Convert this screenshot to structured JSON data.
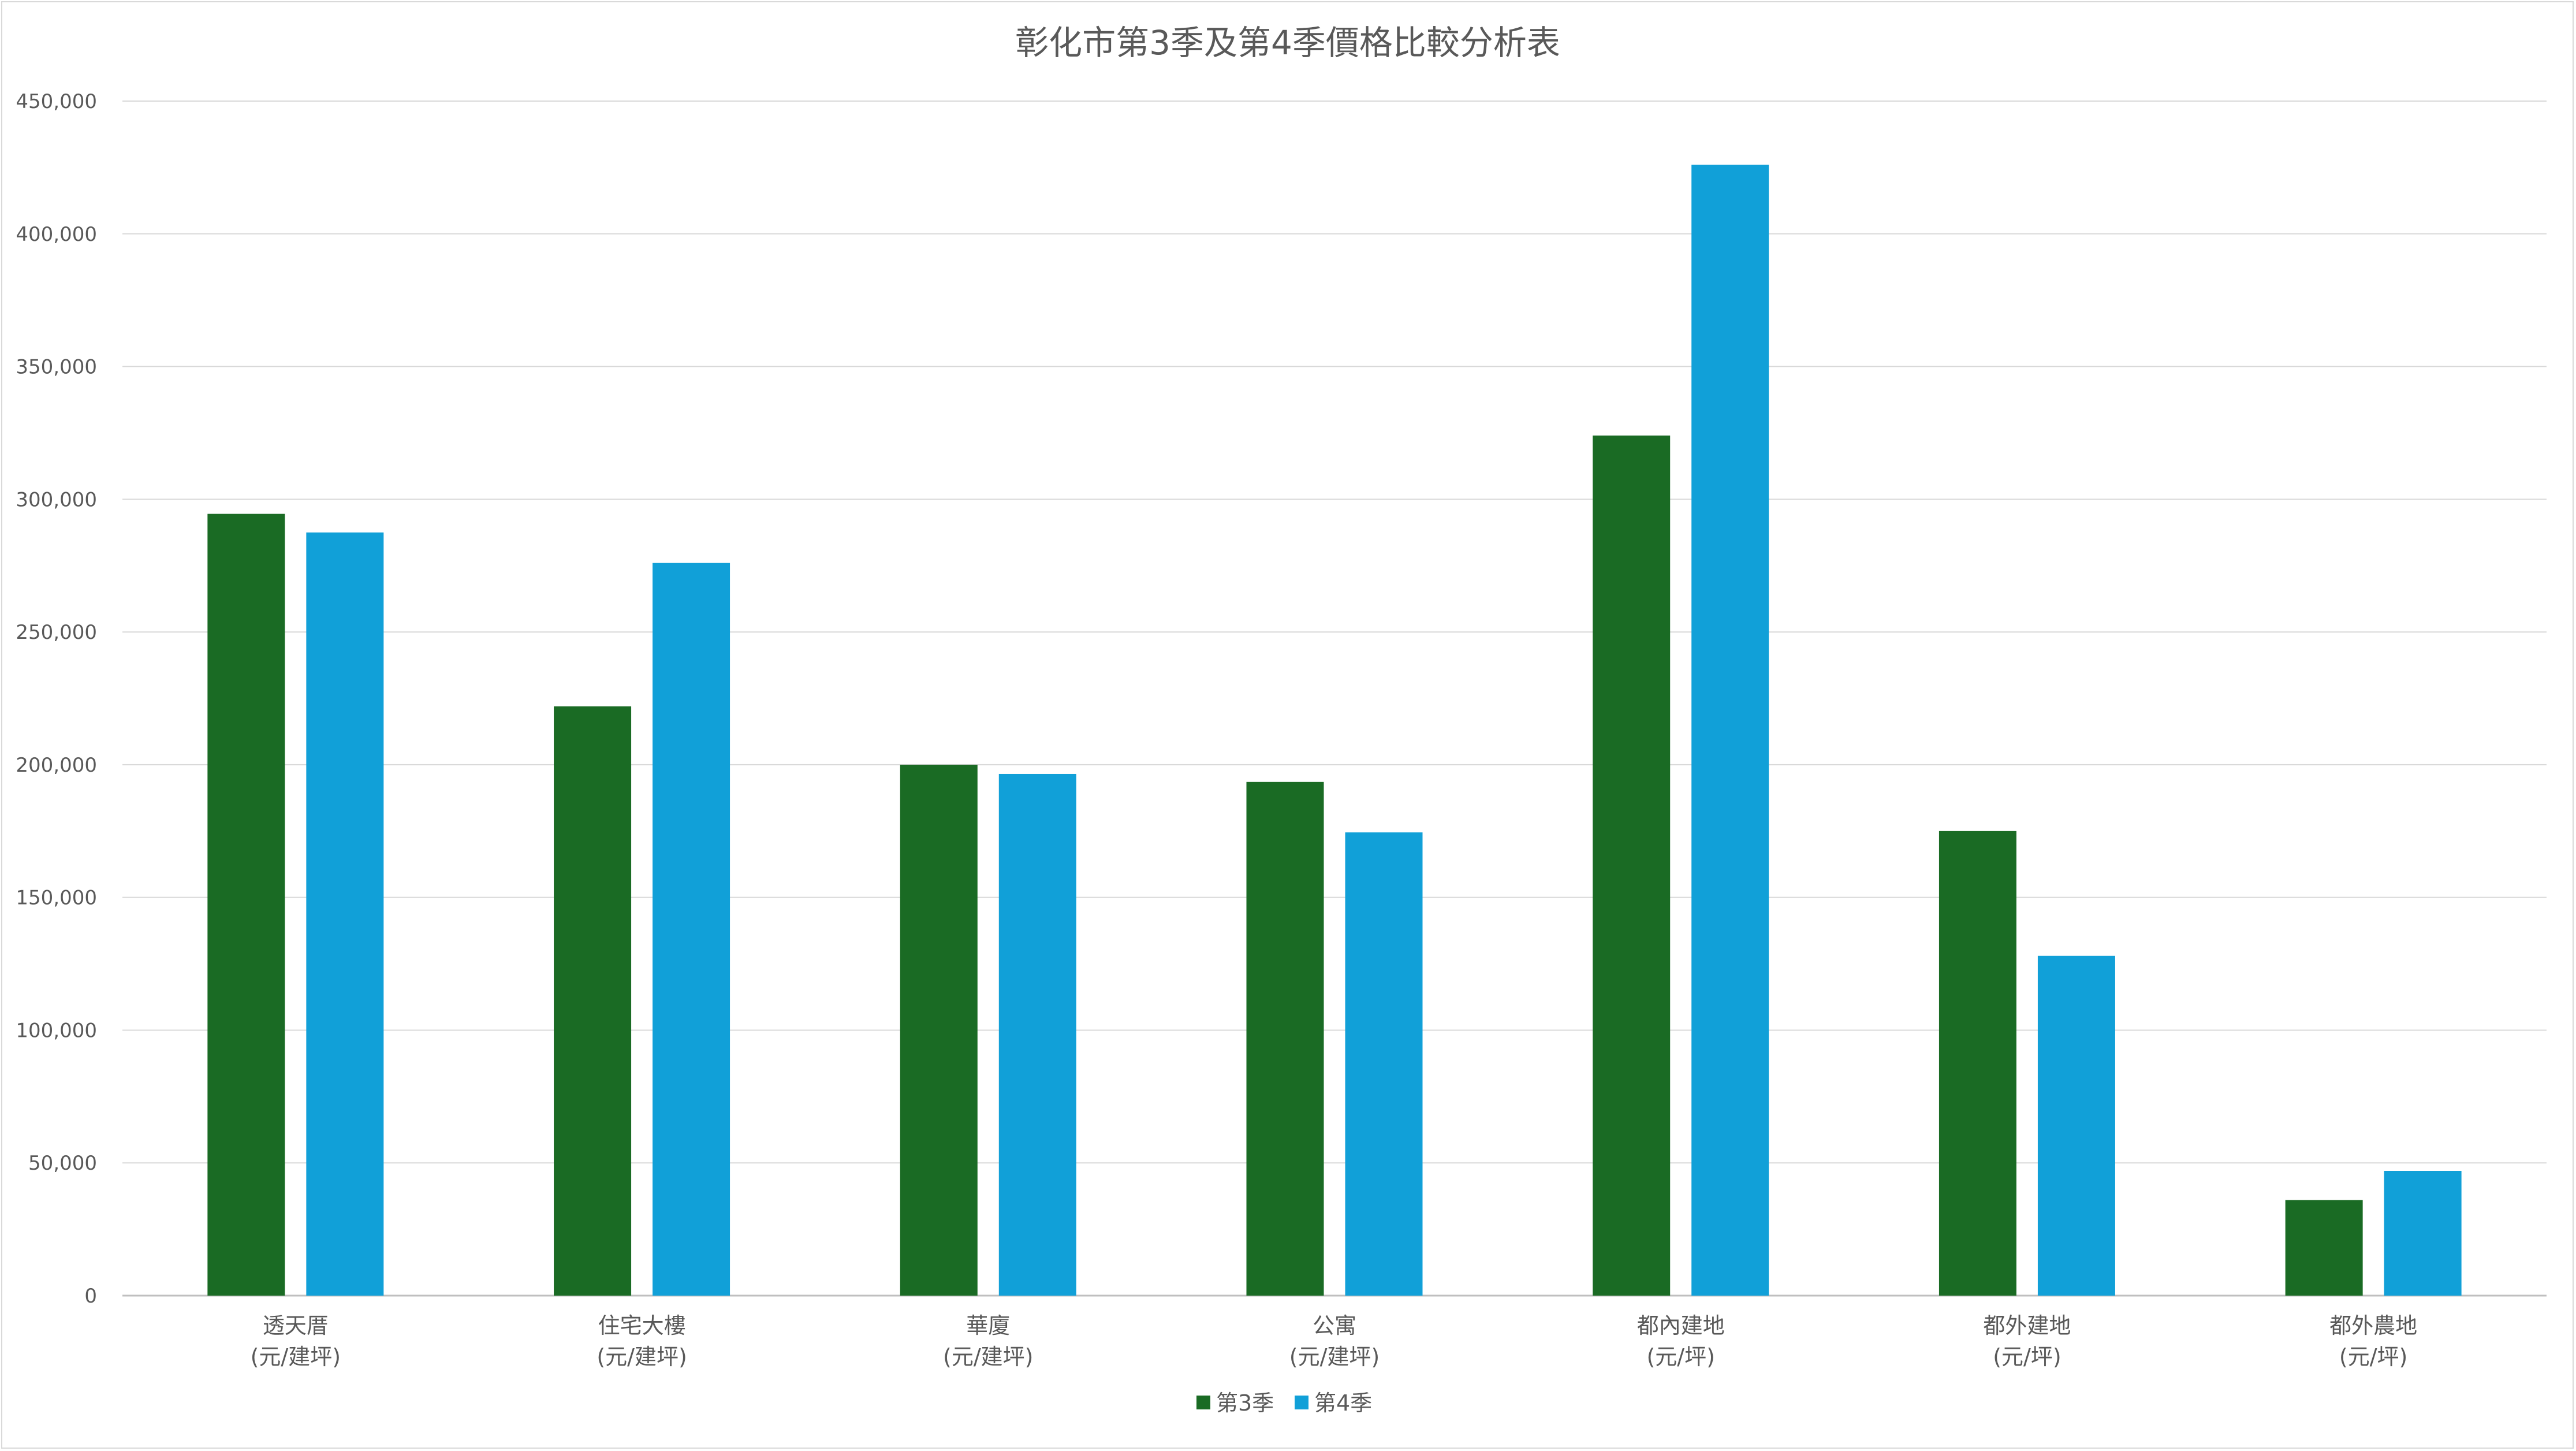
{
  "chart_data": {
    "type": "bar",
    "title": "彰化市第3季及第4季價格比較分析表",
    "xlabel": "",
    "ylabel": "",
    "ylim": [
      0,
      450000
    ],
    "yticks": [
      0,
      50000,
      100000,
      150000,
      200000,
      250000,
      300000,
      350000,
      400000,
      450000
    ],
    "ytick_labels": [
      "0",
      "50,000",
      "100,000",
      "150,000",
      "200,000",
      "250,000",
      "300,000",
      "350,000",
      "400,000",
      "450,000"
    ],
    "categories": [
      [
        "透天厝",
        "(元/建坪)"
      ],
      [
        "住宅大樓",
        "(元/建坪)"
      ],
      [
        "華廈",
        "(元/建坪)"
      ],
      [
        "公寓",
        "(元/建坪)"
      ],
      [
        "都內建地",
        "(元/坪)"
      ],
      [
        "都外建地",
        "(元/坪)"
      ],
      [
        "都外農地",
        "(元/坪)"
      ]
    ],
    "series": [
      {
        "name": "第3季",
        "color": "#1a6b24",
        "values": [
          294500,
          222000,
          200000,
          193500,
          324000,
          175000,
          36000
        ]
      },
      {
        "name": "第4季",
        "color": "#11a0d8",
        "values": [
          287500,
          276000,
          196500,
          174500,
          426000,
          128000,
          47000
        ]
      }
    ],
    "grid": true,
    "legend_position": "bottom"
  }
}
